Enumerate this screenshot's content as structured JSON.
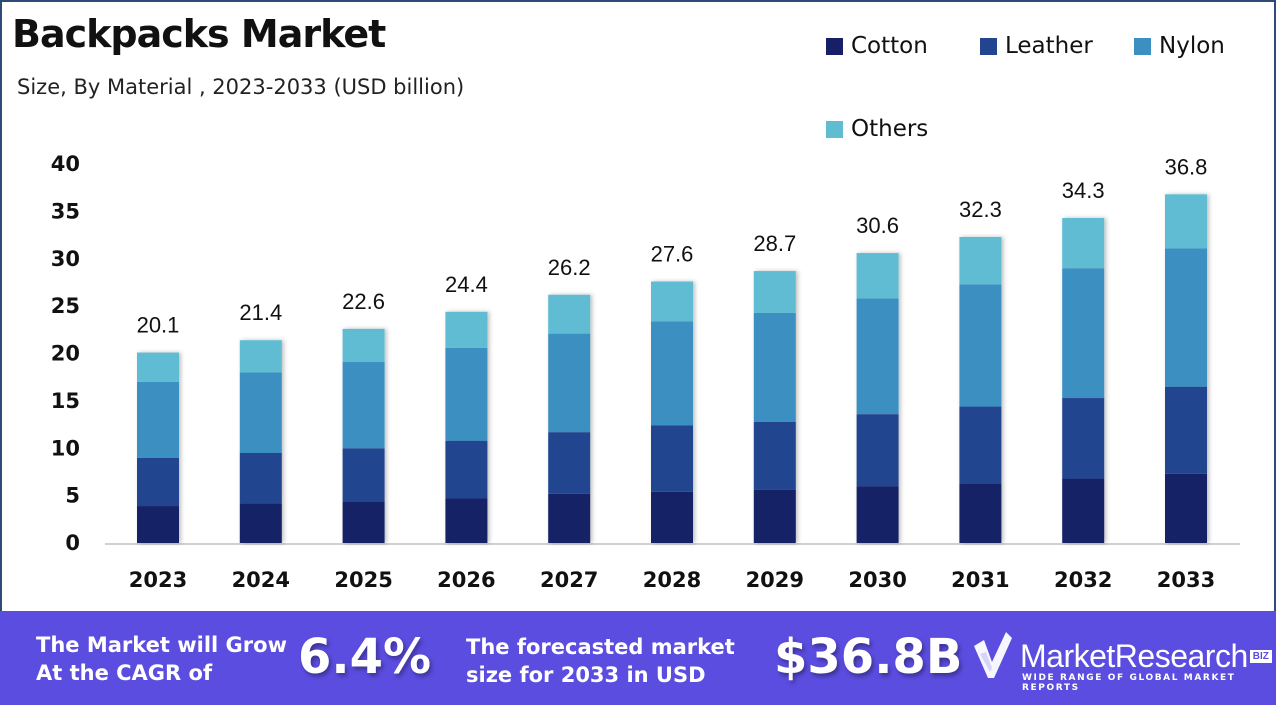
{
  "header": {
    "title": "Backpacks Market",
    "subtitle": "Size, By Material , 2023-2033 (USD billion)"
  },
  "legend": [
    {
      "label": "Cotton",
      "color": "#172066"
    },
    {
      "label": "Leather",
      "color": "#23448f"
    },
    {
      "label": "Nylon",
      "color": "#3b8fc1"
    },
    {
      "label": "Others",
      "color": "#5fbcd3"
    }
  ],
  "chart_data": {
    "type": "bar",
    "stacked": true,
    "title": "Backpacks Market",
    "subtitle": "Size, By Material , 2023-2033 (USD billion)",
    "xlabel": "",
    "ylabel": "",
    "ylim": [
      0,
      40
    ],
    "yticks": [
      0,
      5,
      10,
      15,
      20,
      25,
      30,
      35,
      40
    ],
    "grid": false,
    "legend_position": "top-right",
    "categories": [
      "2023",
      "2024",
      "2025",
      "2026",
      "2027",
      "2028",
      "2029",
      "2030",
      "2031",
      "2032",
      "2033"
    ],
    "series": [
      {
        "name": "Cotton",
        "color": "#172066",
        "values": [
          3.9,
          4.2,
          4.4,
          4.7,
          5.2,
          5.4,
          5.6,
          6.0,
          6.3,
          6.8,
          7.3
        ]
      },
      {
        "name": "Leather",
        "color": "#23448f",
        "values": [
          5.1,
          5.3,
          5.6,
          6.1,
          6.5,
          7.0,
          7.2,
          7.6,
          8.1,
          8.5,
          9.2
        ]
      },
      {
        "name": "Nylon",
        "color": "#3b8fc1",
        "values": [
          8.0,
          8.5,
          9.1,
          9.8,
          10.4,
          11.0,
          11.5,
          12.2,
          12.9,
          13.7,
          14.6
        ]
      },
      {
        "name": "Others",
        "color": "#5fbcd3",
        "values": [
          3.1,
          3.4,
          3.5,
          3.8,
          4.1,
          4.2,
          4.4,
          4.8,
          5.0,
          5.3,
          5.7
        ]
      }
    ],
    "totals": [
      20.1,
      21.4,
      22.6,
      24.4,
      26.2,
      27.6,
      28.7,
      30.6,
      32.3,
      34.3,
      36.8
    ],
    "total_labels": [
      "20.1",
      "21.4",
      "22.6",
      "24.4",
      "26.2",
      "27.6",
      "28.7",
      "30.6",
      "32.3",
      "34.3",
      "36.8"
    ]
  },
  "banner": {
    "cagr_text_line1": "The Market will Grow",
    "cagr_text_line2": "At the CAGR of",
    "cagr_value": "6.4%",
    "forecast_text_line1": "The forecasted market",
    "forecast_text_line2": "size for 2033 in USD",
    "forecast_value": "$36.8B",
    "background_color": "#5b4de0"
  },
  "logo": {
    "name": "MarketResearch",
    "badge": "BIZ",
    "tagline": "WIDE RANGE OF GLOBAL MARKET REPORTS"
  }
}
